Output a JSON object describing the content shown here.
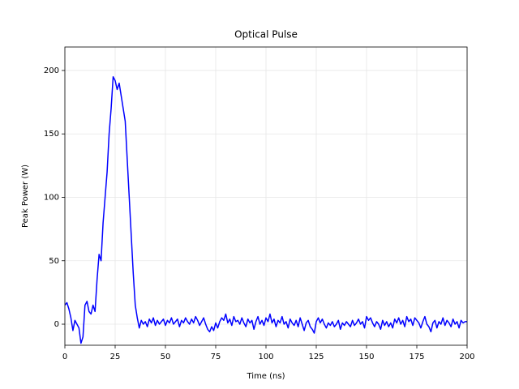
{
  "chart_data": {
    "type": "line",
    "title": "Optical Pulse",
    "x_label": "Time (ns)",
    "y_label": "Peak Power (W)",
    "x": [
      0,
      1,
      2,
      3,
      4,
      5,
      6,
      7,
      8,
      9,
      10,
      11,
      12,
      13,
      14,
      15,
      16,
      17,
      18,
      19,
      20,
      21,
      22,
      23,
      24,
      25,
      26,
      27,
      28,
      29,
      30,
      31,
      32,
      33,
      34,
      35,
      36,
      37,
      38,
      39,
      40,
      41,
      42,
      43,
      44,
      45,
      46,
      47,
      48,
      49,
      50,
      51,
      52,
      53,
      54,
      55,
      56,
      57,
      58,
      59,
      60,
      61,
      62,
      63,
      64,
      65,
      66,
      67,
      68,
      69,
      70,
      71,
      72,
      73,
      74,
      75,
      76,
      77,
      78,
      79,
      80,
      81,
      82,
      83,
      84,
      85,
      86,
      87,
      88,
      89,
      90,
      91,
      92,
      93,
      94,
      95,
      96,
      97,
      98,
      99,
      100,
      101,
      102,
      103,
      104,
      105,
      106,
      107,
      108,
      109,
      110,
      111,
      112,
      113,
      114,
      115,
      116,
      117,
      118,
      119,
      120,
      121,
      122,
      123,
      124,
      125,
      126,
      127,
      128,
      129,
      130,
      131,
      132,
      133,
      134,
      135,
      136,
      137,
      138,
      139,
      140,
      141,
      142,
      143,
      144,
      145,
      146,
      147,
      148,
      149,
      150,
      151,
      152,
      153,
      154,
      155,
      156,
      157,
      158,
      159,
      160,
      161,
      162,
      163,
      164,
      165,
      166,
      167,
      168,
      169,
      170,
      171,
      172,
      173,
      174,
      175,
      176,
      177,
      178,
      179,
      180,
      181,
      182,
      183,
      184,
      185,
      186,
      187,
      188,
      189,
      190,
      191,
      192,
      193,
      194,
      195,
      196,
      197,
      198,
      199,
      200
    ],
    "series": [
      {
        "color": "#0000ff",
        "values": [
          15,
          17,
          12,
          5,
          -5,
          3,
          0,
          -3,
          -15,
          -10,
          15,
          18,
          10,
          8,
          15,
          10,
          35,
          55,
          50,
          80,
          100,
          120,
          150,
          170,
          195,
          192,
          185,
          190,
          180,
          170,
          160,
          130,
          100,
          70,
          40,
          15,
          5,
          -3,
          3,
          0,
          2,
          -2,
          4,
          1,
          5,
          -1,
          3,
          0,
          2,
          4,
          -1,
          3,
          1,
          5,
          0,
          2,
          4,
          -2,
          3,
          1,
          5,
          2,
          0,
          4,
          1,
          6,
          3,
          -1,
          2,
          5,
          0,
          -4,
          -6,
          -2,
          -5,
          1,
          -3,
          2,
          5,
          3,
          8,
          1,
          4,
          -1,
          6,
          2,
          3,
          0,
          5,
          1,
          -2,
          4,
          1,
          3,
          -4,
          2,
          6,
          0,
          3,
          -1,
          5,
          2,
          8,
          1,
          4,
          -2,
          3,
          1,
          6,
          0,
          2,
          -3,
          4,
          1,
          -1,
          3,
          -2,
          5,
          0,
          -5,
          1,
          3,
          -2,
          -4,
          -7,
          2,
          5,
          1,
          4,
          0,
          -3,
          1,
          -1,
          2,
          -2,
          0,
          3,
          -4,
          1,
          -1,
          2,
          0,
          -2,
          3,
          -1,
          1,
          4,
          0,
          2,
          -3,
          6,
          3,
          5,
          1,
          -2,
          2,
          0,
          -4,
          3,
          -1,
          2,
          -2,
          1,
          -3,
          4,
          1,
          5,
          0,
          3,
          -2,
          6,
          2,
          4,
          -1,
          5,
          3,
          1,
          -3,
          2,
          6,
          0,
          -2,
          -6,
          1,
          3,
          -3,
          2,
          0,
          5,
          -1,
          3,
          1,
          -2,
          4,
          0,
          2,
          -3,
          3,
          1,
          2,
          2
        ]
      }
    ],
    "xlim": [
      0,
      200
    ],
    "ylim": [
      -16.6,
      218.5
    ],
    "xticks": [
      0,
      25,
      50,
      75,
      100,
      125,
      150,
      175,
      200
    ],
    "yticks": [
      0,
      50,
      100,
      150,
      200
    ],
    "grid": true
  }
}
